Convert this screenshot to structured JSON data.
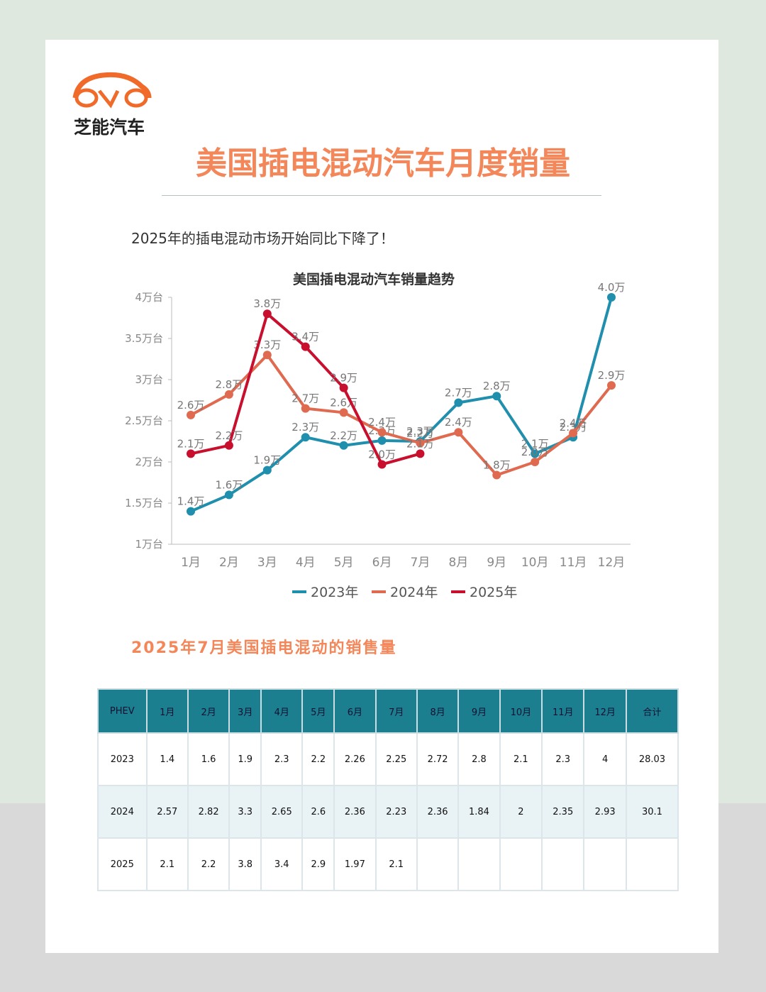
{
  "header": {
    "logo_text": "芝能汽车",
    "title": "美国插电混动汽车月度销量",
    "subtitle": "2025年的插电混动市场开始同比下降了！"
  },
  "chart_data": {
    "type": "line",
    "title": "美国插电混动汽车销量趋势",
    "categories": [
      "1月",
      "2月",
      "3月",
      "4月",
      "5月",
      "6月",
      "7月",
      "8月",
      "9月",
      "10月",
      "11月",
      "12月"
    ],
    "ylim": [
      1,
      4
    ],
    "yticks": [
      {
        "value": 1,
        "label": "1万台"
      },
      {
        "value": 1.5,
        "label": "1.5万台"
      },
      {
        "value": 2,
        "label": "2万台"
      },
      {
        "value": 2.5,
        "label": "2.5万台"
      },
      {
        "value": 3,
        "label": "3万台"
      },
      {
        "value": 3.5,
        "label": "3.5万台"
      },
      {
        "value": 4,
        "label": "4万台"
      }
    ],
    "grid": false,
    "legend": "bottom",
    "series": [
      {
        "name": "2023年",
        "color": "#1f8fad",
        "values": [
          1.4,
          1.6,
          1.9,
          2.3,
          2.2,
          2.26,
          2.25,
          2.72,
          2.8,
          2.1,
          2.3,
          4
        ],
        "value_labels": [
          "1.4万",
          "1.6万",
          "1.9万",
          "2.3万",
          "2.2万",
          "2.3万",
          "2.3万",
          "2.7万",
          "2.8万",
          "2.1万",
          "2.3万",
          "4.0万"
        ]
      },
      {
        "name": "2024年",
        "color": "#e06a50",
        "values": [
          2.57,
          2.82,
          3.3,
          2.65,
          2.6,
          2.36,
          2.23,
          2.36,
          1.84,
          2,
          2.35,
          2.93
        ],
        "value_labels": [
          "2.6万",
          "2.8万",
          "3.3万",
          "2.7万",
          "2.6万",
          "2.4万",
          "2.2万",
          "2.4万",
          "1.8万",
          "2.0万",
          "2.4万",
          "2.9万"
        ]
      },
      {
        "name": "2025年",
        "color": "#c8102e",
        "values": [
          2.1,
          2.2,
          3.8,
          3.4,
          2.9,
          1.97,
          2.1,
          null,
          null,
          null,
          null,
          null
        ],
        "value_labels": [
          "2.1万",
          "2.2万",
          "3.8万",
          "3.4万",
          "2.9万",
          "2.0万",
          "2.1万",
          null,
          null,
          null,
          null,
          null
        ]
      }
    ]
  },
  "table": {
    "title": "2025年7月美国插电混动的销售量",
    "header": [
      "PHEV",
      "1月",
      "2月",
      "3月",
      "4月",
      "5月",
      "6月",
      "7月",
      "8月",
      "9月",
      "10月",
      "11月",
      "12月",
      "合计"
    ],
    "rows": [
      [
        "2023",
        1.4,
        1.6,
        1.9,
        2.3,
        2.2,
        2.26,
        2.25,
        2.72,
        2.8,
        2.1,
        2.3,
        4,
        28.03
      ],
      [
        "2024",
        2.57,
        2.82,
        3.3,
        2.65,
        2.6,
        2.36,
        2.23,
        2.36,
        1.84,
        2,
        2.35,
        2.93,
        30.1
      ],
      [
        "2025",
        2.1,
        2.2,
        3.8,
        3.4,
        2.9,
        1.97,
        2.1
      ]
    ]
  }
}
